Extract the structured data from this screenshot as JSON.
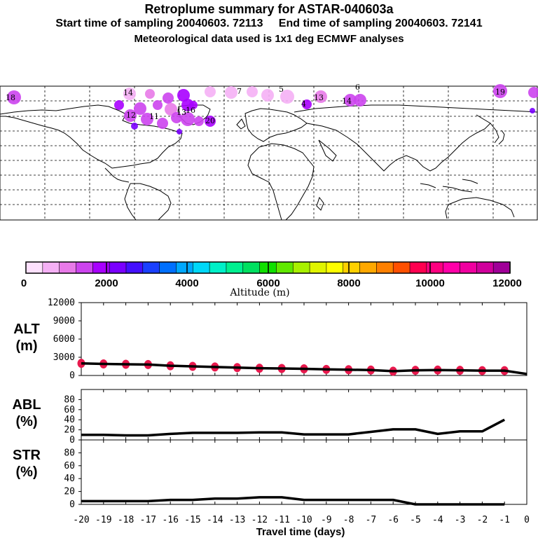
{
  "header": {
    "title": "Retroplume summary for ASTAR-040603a",
    "sampling_line": "Start time of sampling 20040603. 72113     End time of sampling 20040603. 72141",
    "met_line": "Meteorological data used is 1x1 deg ECMWF analyses"
  },
  "colors": {
    "axis": "#000000",
    "marker": "#e8194d",
    "palette": [
      "#fde0fd",
      "#f5b0f5",
      "#e87ae8",
      "#cc44ee",
      "#a800ff",
      "#7a00ff",
      "#4410ff",
      "#1a40ff",
      "#0070ff",
      "#00a8ff",
      "#00d8f8",
      "#00f0c8",
      "#00f090",
      "#00e060",
      "#10e000",
      "#60e800",
      "#a8f000",
      "#e0f400",
      "#ffff00",
      "#ffd000",
      "#ffa800",
      "#ff8000",
      "#ff5000",
      "#ff0050",
      "#ff0080",
      "#ff00a8",
      "#f000a0",
      "#d0009c",
      "#a00098"
    ]
  },
  "colorbar": {
    "title": "Altitude (m)",
    "tick_labels": [
      "0",
      "2000",
      "4000",
      "6000",
      "8000",
      "10000",
      "12000"
    ],
    "range": [
      0,
      12000
    ]
  },
  "map": {
    "plume_labels": [
      "18",
      "14",
      "7",
      "5",
      "6",
      "13",
      "4",
      "14",
      "19",
      "13",
      "16",
      "20",
      "11",
      "12"
    ]
  },
  "chart_data": [
    {
      "type": "line",
      "panel": "ALT",
      "ylabel": "ALT\n(m)",
      "ylabel_lines": [
        "ALT",
        "(m)"
      ],
      "x": [
        -20,
        -19,
        -18,
        -17,
        -16,
        -15,
        -14,
        -13,
        -12,
        -11,
        -10,
        -9,
        -8,
        -7,
        -6,
        -5,
        -4,
        -3,
        -2,
        -1,
        0
      ],
      "values": [
        2000,
        1900,
        1850,
        1800,
        1600,
        1500,
        1400,
        1300,
        1200,
        1150,
        1100,
        1000,
        950,
        900,
        700,
        850,
        900,
        850,
        800,
        800,
        250
      ],
      "markers": true,
      "xlim": [
        -20,
        0
      ],
      "ylim": [
        0,
        12000
      ],
      "yticks": [
        0,
        3000,
        6000,
        9000,
        12000
      ],
      "ytick_labels": [
        "0",
        "3000",
        "6000",
        "9000",
        "12000"
      ]
    },
    {
      "type": "line",
      "panel": "ABL",
      "ylabel": "ABL\n(%)",
      "ylabel_lines": [
        "ABL",
        "(%)"
      ],
      "x": [
        -20,
        -19,
        -18,
        -17,
        -16,
        -15,
        -14,
        -13,
        -12,
        -11,
        -10,
        -9,
        -8,
        -7,
        -6,
        -5,
        -4,
        -3,
        -2,
        -1
      ],
      "values": [
        10,
        10,
        9,
        9,
        12,
        14,
        14,
        14,
        15,
        15,
        11,
        11,
        11,
        16,
        21,
        21,
        12,
        17,
        17,
        40
      ],
      "xlim": [
        -20,
        0
      ],
      "ylim": [
        0,
        100
      ],
      "yticks": [
        0,
        20,
        40,
        60,
        80
      ],
      "ytick_labels": [
        "0",
        "20",
        "40",
        "60",
        "80"
      ]
    },
    {
      "type": "line",
      "panel": "STR",
      "ylabel": "STR\n(%)",
      "ylabel_lines": [
        "STR",
        "(%)"
      ],
      "x": [
        -20,
        -19,
        -18,
        -17,
        -16,
        -15,
        -14,
        -13,
        -12,
        -11,
        -10,
        -9,
        -8,
        -7,
        -6,
        -5,
        -4,
        -3,
        -2,
        -1
      ],
      "values": [
        5,
        5,
        5,
        5,
        7,
        7,
        9,
        9,
        11,
        11,
        7,
        7,
        7,
        7,
        7,
        0,
        0,
        0,
        0,
        0
      ],
      "xlim": [
        -20,
        0
      ],
      "ylim": [
        0,
        100
      ],
      "yticks": [
        0,
        20,
        40,
        60,
        80
      ],
      "ytick_labels": [
        "0",
        "20",
        "40",
        "60",
        "80"
      ],
      "xlabel": "Travel time (days)",
      "xtick_labels": [
        "-20",
        "-19",
        "-18",
        "-17",
        "-16",
        "-15",
        "-14",
        "-13",
        "-12",
        "-11",
        "-10",
        "-9",
        "-8",
        "-7",
        "-6",
        "-5",
        "-4",
        "-3",
        "-2",
        "-1",
        "0"
      ]
    }
  ]
}
